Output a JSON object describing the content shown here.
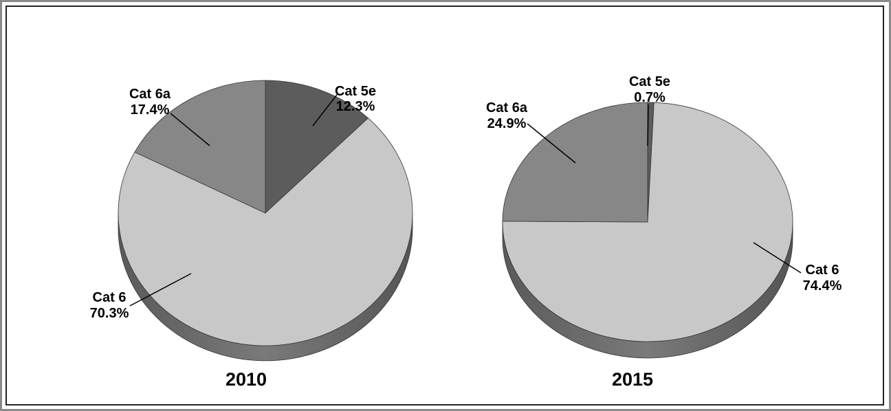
{
  "colors": {
    "Cat 5e": "#5c5c5c",
    "Cat 6": "#c8c8c8",
    "Cat 6a": "#878787"
  },
  "chart_data": [
    {
      "type": "pie",
      "title": "2010",
      "slices": [
        {
          "label": "Cat 5e",
          "value_label": "12.3%",
          "value": 12.3
        },
        {
          "label": "Cat 6",
          "value_label": "70.3%",
          "value": 70.3
        },
        {
          "label": "Cat 6a",
          "value_label": "17.4%",
          "value": 17.4
        }
      ]
    },
    {
      "type": "pie",
      "title": "2015",
      "slices": [
        {
          "label": "Cat 5e",
          "value_label": "0.7%",
          "value": 0.7
        },
        {
          "label": "Cat 6",
          "value_label": "74.4%",
          "value": 74.4
        },
        {
          "label": "Cat 6a",
          "value_label": "24.9%",
          "value": 24.9
        }
      ]
    }
  ]
}
